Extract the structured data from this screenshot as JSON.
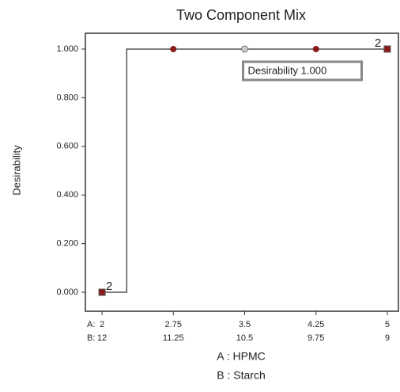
{
  "chart_data": {
    "type": "line",
    "title": "Two Component Mix",
    "ylabel": "Desirability",
    "xlabel_lines": [
      "A : HPMC",
      "B : Starch"
    ],
    "component_prefixes": [
      "A:",
      "B:"
    ],
    "xlim": [
      1.825,
      5.117
    ],
    "ylim": [
      -0.078,
      1.065
    ],
    "xticks": [
      {
        "value": 2,
        "label": "2"
      },
      {
        "value": 2.75,
        "label": "2.75"
      },
      {
        "value": 3.5,
        "label": "3.5"
      },
      {
        "value": 4.25,
        "label": "4.25"
      },
      {
        "value": 5,
        "label": "5"
      }
    ],
    "xticks_b": [
      "12",
      "11.25",
      "10.5",
      "9.75",
      "9"
    ],
    "yticks": [
      {
        "value": 0,
        "label": "0.000"
      },
      {
        "value": 0.2,
        "label": "0.200"
      },
      {
        "value": 0.4,
        "label": "0.400"
      },
      {
        "value": 0.6,
        "label": "0.600"
      },
      {
        "value": 0.8,
        "label": "0.800"
      },
      {
        "value": 1,
        "label": "1.000"
      }
    ],
    "line": {
      "x": [
        2,
        2.26,
        2.26,
        5
      ],
      "values": [
        0,
        0,
        1,
        1
      ],
      "color": "#555555"
    },
    "points": {
      "x": [
        2,
        2.75,
        3.5,
        4.25,
        5
      ],
      "values": [
        0,
        1,
        1,
        1,
        1
      ],
      "markers": [
        "square",
        "circle",
        "open-circle",
        "circle",
        "square"
      ],
      "labels": [
        "2",
        null,
        null,
        null,
        "2"
      ],
      "color": "#8b1a1a"
    },
    "annotation": {
      "text": "Desirability 1.000",
      "point": 2
    }
  }
}
